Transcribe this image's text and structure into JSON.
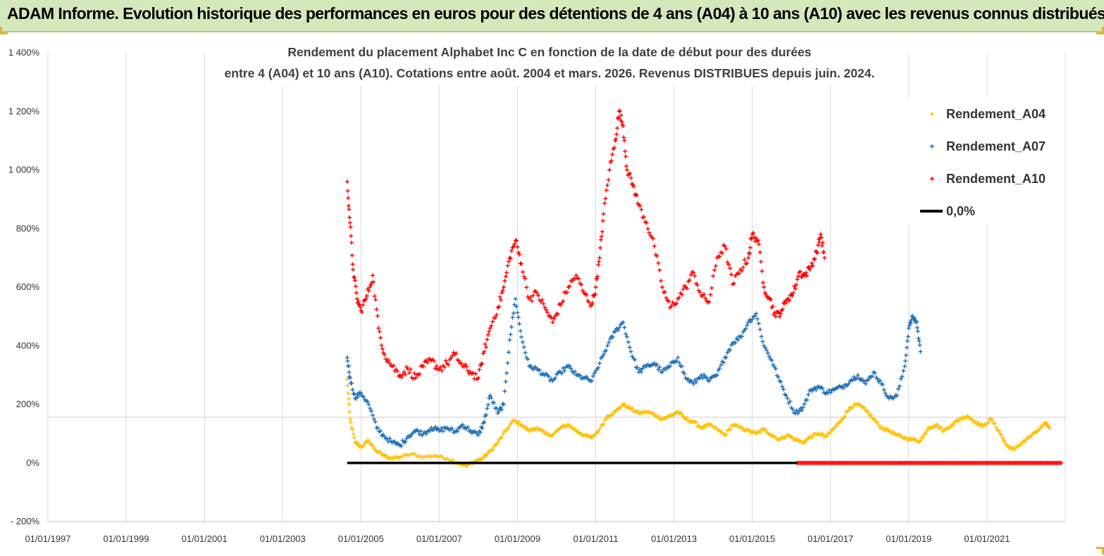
{
  "banner": {
    "title": "ADAM Informe. Evolution historique des performances en euros pour des détentions de 4 ans (A04) à 10 ans (A10) avec les revenus connus distribués"
  },
  "chart_data": {
    "type": "scatter",
    "title_lines": [
      "Rendement du placement Alphabet Inc C en fonction de la date de début pour des durées",
      "entre 4 (A04) et 10 ans (A10). Cotations entre août. 2004 et mars. 2026. Revenus DISTRIBUES depuis juin. 2024."
    ],
    "xlabel": "",
    "ylabel": "",
    "x_range": [
      1997.0,
      2023.0
    ],
    "x_ticks": [
      {
        "x": 1997,
        "label": "01/01/1997"
      },
      {
        "x": 1999,
        "label": "01/01/1999"
      },
      {
        "x": 2001,
        "label": "01/01/2001"
      },
      {
        "x": 2003,
        "label": "01/01/2003"
      },
      {
        "x": 2005,
        "label": "01/01/2005"
      },
      {
        "x": 2007,
        "label": "01/01/2007"
      },
      {
        "x": 2009,
        "label": "01/01/2009"
      },
      {
        "x": 2011,
        "label": "01/01/2011"
      },
      {
        "x": 2013,
        "label": "01/01/2013"
      },
      {
        "x": 2015,
        "label": "01/01/2015"
      },
      {
        "x": 2017,
        "label": "01/01/2017"
      },
      {
        "x": 2019,
        "label": "01/01/2019"
      },
      {
        "x": 2021,
        "label": "01/01/2021"
      }
    ],
    "ylim": [
      -200,
      1400
    ],
    "y_ticks": [
      {
        "y": -200,
        "label": "- 200%"
      },
      {
        "y": 0,
        "label": "0%"
      },
      {
        "y": 200,
        "label": "200%"
      },
      {
        "y": 400,
        "label": "400%"
      },
      {
        "y": 600,
        "label": "600%"
      },
      {
        "y": 800,
        "label": "800%"
      },
      {
        "y": 1000,
        "label": "1 000%"
      },
      {
        "y": 1200,
        "label": "1 200%"
      },
      {
        "y": 1400,
        "label": "1 400%"
      }
    ],
    "grid": "vertical",
    "legend_position": "top-right",
    "series": [
      {
        "name": "Rendement_A04",
        "color": "#ffc000",
        "marker": "+",
        "points": [
          [
            2004.65,
            285
          ],
          [
            2004.72,
            150
          ],
          [
            2004.85,
            70
          ],
          [
            2005.0,
            55
          ],
          [
            2005.2,
            75
          ],
          [
            2005.4,
            40
          ],
          [
            2005.6,
            25
          ],
          [
            2005.8,
            15
          ],
          [
            2006.0,
            20
          ],
          [
            2006.3,
            30
          ],
          [
            2006.6,
            20
          ],
          [
            2006.9,
            25
          ],
          [
            2007.2,
            15
          ],
          [
            2007.5,
            0
          ],
          [
            2007.7,
            -10
          ],
          [
            2007.9,
            5
          ],
          [
            2008.1,
            15
          ],
          [
            2008.3,
            40
          ],
          [
            2008.5,
            70
          ],
          [
            2008.7,
            110
          ],
          [
            2008.9,
            145
          ],
          [
            2009.1,
            130
          ],
          [
            2009.3,
            110
          ],
          [
            2009.5,
            120
          ],
          [
            2009.7,
            100
          ],
          [
            2009.9,
            95
          ],
          [
            2010.1,
            120
          ],
          [
            2010.3,
            130
          ],
          [
            2010.5,
            110
          ],
          [
            2010.7,
            95
          ],
          [
            2010.9,
            85
          ],
          [
            2011.1,
            115
          ],
          [
            2011.3,
            160
          ],
          [
            2011.5,
            175
          ],
          [
            2011.7,
            200
          ],
          [
            2011.9,
            185
          ],
          [
            2012.1,
            170
          ],
          [
            2012.3,
            175
          ],
          [
            2012.5,
            165
          ],
          [
            2012.7,
            150
          ],
          [
            2012.9,
            160
          ],
          [
            2013.1,
            175
          ],
          [
            2013.3,
            150
          ],
          [
            2013.5,
            140
          ],
          [
            2013.7,
            120
          ],
          [
            2013.9,
            130
          ],
          [
            2014.1,
            115
          ],
          [
            2014.3,
            95
          ],
          [
            2014.5,
            130
          ],
          [
            2014.7,
            120
          ],
          [
            2014.9,
            110
          ],
          [
            2015.1,
            100
          ],
          [
            2015.3,
            115
          ],
          [
            2015.5,
            95
          ],
          [
            2015.7,
            80
          ],
          [
            2015.9,
            95
          ],
          [
            2016.1,
            80
          ],
          [
            2016.3,
            70
          ],
          [
            2016.5,
            90
          ],
          [
            2016.7,
            100
          ],
          [
            2016.9,
            90
          ],
          [
            2017.1,
            120
          ],
          [
            2017.3,
            150
          ],
          [
            2017.5,
            190
          ],
          [
            2017.7,
            200
          ],
          [
            2017.9,
            180
          ],
          [
            2018.1,
            150
          ],
          [
            2018.3,
            120
          ],
          [
            2018.5,
            110
          ],
          [
            2018.7,
            95
          ],
          [
            2018.9,
            85
          ],
          [
            2019.1,
            80
          ],
          [
            2019.3,
            75
          ],
          [
            2019.5,
            120
          ],
          [
            2019.7,
            130
          ],
          [
            2019.9,
            110
          ],
          [
            2020.1,
            130
          ],
          [
            2020.3,
            150
          ],
          [
            2020.5,
            160
          ],
          [
            2020.7,
            140
          ],
          [
            2020.9,
            125
          ],
          [
            2021.1,
            150
          ],
          [
            2021.3,
            110
          ],
          [
            2021.5,
            60
          ],
          [
            2021.7,
            45
          ],
          [
            2021.9,
            70
          ],
          [
            2022.1,
            90
          ],
          [
            2022.3,
            110
          ],
          [
            2022.5,
            135
          ],
          [
            2022.6,
            120
          ]
        ]
      },
      {
        "name": "Rendement_A07",
        "color": "#1f6fb5",
        "marker": "+",
        "points": [
          [
            2004.65,
            360
          ],
          [
            2004.72,
            290
          ],
          [
            2004.85,
            220
          ],
          [
            2005.0,
            240
          ],
          [
            2005.2,
            200
          ],
          [
            2005.4,
            120
          ],
          [
            2005.6,
            90
          ],
          [
            2005.8,
            70
          ],
          [
            2006.0,
            60
          ],
          [
            2006.2,
            90
          ],
          [
            2006.4,
            110
          ],
          [
            2006.6,
            100
          ],
          [
            2006.8,
            120
          ],
          [
            2007.0,
            110
          ],
          [
            2007.2,
            120
          ],
          [
            2007.4,
            105
          ],
          [
            2007.6,
            130
          ],
          [
            2007.8,
            110
          ],
          [
            2008.0,
            95
          ],
          [
            2008.15,
            140
          ],
          [
            2008.3,
            230
          ],
          [
            2008.5,
            170
          ],
          [
            2008.65,
            200
          ],
          [
            2008.8,
            420
          ],
          [
            2008.95,
            560
          ],
          [
            2009.1,
            430
          ],
          [
            2009.3,
            330
          ],
          [
            2009.5,
            320
          ],
          [
            2009.7,
            300
          ],
          [
            2009.9,
            280
          ],
          [
            2010.1,
            310
          ],
          [
            2010.3,
            330
          ],
          [
            2010.5,
            300
          ],
          [
            2010.7,
            290
          ],
          [
            2010.9,
            280
          ],
          [
            2011.1,
            340
          ],
          [
            2011.3,
            400
          ],
          [
            2011.5,
            450
          ],
          [
            2011.7,
            480
          ],
          [
            2011.9,
            380
          ],
          [
            2012.1,
            310
          ],
          [
            2012.3,
            330
          ],
          [
            2012.5,
            340
          ],
          [
            2012.7,
            310
          ],
          [
            2012.9,
            330
          ],
          [
            2013.1,
            360
          ],
          [
            2013.3,
            290
          ],
          [
            2013.5,
            270
          ],
          [
            2013.7,
            300
          ],
          [
            2013.9,
            280
          ],
          [
            2014.1,
            300
          ],
          [
            2014.3,
            360
          ],
          [
            2014.5,
            410
          ],
          [
            2014.7,
            430
          ],
          [
            2014.9,
            480
          ],
          [
            2015.1,
            510
          ],
          [
            2015.3,
            400
          ],
          [
            2015.5,
            350
          ],
          [
            2015.7,
            280
          ],
          [
            2015.9,
            220
          ],
          [
            2016.1,
            170
          ],
          [
            2016.3,
            190
          ],
          [
            2016.5,
            250
          ],
          [
            2016.7,
            260
          ],
          [
            2016.9,
            240
          ],
          [
            2017.1,
            250
          ],
          [
            2017.3,
            260
          ],
          [
            2017.5,
            280
          ],
          [
            2017.7,
            300
          ],
          [
            2017.9,
            270
          ],
          [
            2018.1,
            310
          ],
          [
            2018.3,
            270
          ],
          [
            2018.5,
            220
          ],
          [
            2018.7,
            230
          ],
          [
            2018.9,
            330
          ],
          [
            2019.0,
            460
          ],
          [
            2019.1,
            500
          ],
          [
            2019.2,
            480
          ],
          [
            2019.3,
            380
          ]
        ]
      },
      {
        "name": "Rendement_A10",
        "color": "#ff0000",
        "marker": "+",
        "points": [
          [
            2004.65,
            960
          ],
          [
            2004.72,
            820
          ],
          [
            2004.8,
            660
          ],
          [
            2004.9,
            560
          ],
          [
            2005.0,
            520
          ],
          [
            2005.15,
            570
          ],
          [
            2005.3,
            640
          ],
          [
            2005.45,
            460
          ],
          [
            2005.6,
            370
          ],
          [
            2005.8,
            330
          ],
          [
            2006.0,
            300
          ],
          [
            2006.2,
            320
          ],
          [
            2006.4,
            290
          ],
          [
            2006.6,
            330
          ],
          [
            2006.8,
            350
          ],
          [
            2007.0,
            320
          ],
          [
            2007.2,
            340
          ],
          [
            2007.4,
            370
          ],
          [
            2007.6,
            330
          ],
          [
            2007.8,
            310
          ],
          [
            2008.0,
            290
          ],
          [
            2008.15,
            380
          ],
          [
            2008.3,
            460
          ],
          [
            2008.5,
            530
          ],
          [
            2008.65,
            600
          ],
          [
            2008.8,
            700
          ],
          [
            2008.95,
            760
          ],
          [
            2009.1,
            680
          ],
          [
            2009.3,
            560
          ],
          [
            2009.5,
            580
          ],
          [
            2009.7,
            530
          ],
          [
            2009.9,
            480
          ],
          [
            2010.1,
            540
          ],
          [
            2010.3,
            600
          ],
          [
            2010.5,
            640
          ],
          [
            2010.7,
            580
          ],
          [
            2010.9,
            540
          ],
          [
            2011.0,
            600
          ],
          [
            2011.1,
            700
          ],
          [
            2011.2,
            850
          ],
          [
            2011.35,
            1000
          ],
          [
            2011.5,
            1100
          ],
          [
            2011.6,
            1200
          ],
          [
            2011.7,
            1150
          ],
          [
            2011.8,
            1000
          ],
          [
            2011.95,
            950
          ],
          [
            2012.1,
            880
          ],
          [
            2012.3,
            820
          ],
          [
            2012.5,
            740
          ],
          [
            2012.7,
            600
          ],
          [
            2012.9,
            530
          ],
          [
            2013.1,
            560
          ],
          [
            2013.3,
            600
          ],
          [
            2013.5,
            650
          ],
          [
            2013.7,
            570
          ],
          [
            2013.9,
            550
          ],
          [
            2014.1,
            700
          ],
          [
            2014.3,
            740
          ],
          [
            2014.5,
            610
          ],
          [
            2014.7,
            660
          ],
          [
            2014.9,
            700
          ],
          [
            2015.0,
            780
          ],
          [
            2015.15,
            760
          ],
          [
            2015.3,
            600
          ],
          [
            2015.45,
            560
          ],
          [
            2015.6,
            500
          ],
          [
            2015.75,
            520
          ],
          [
            2015.9,
            560
          ],
          [
            2016.05,
            580
          ],
          [
            2016.2,
            650
          ],
          [
            2016.35,
            640
          ],
          [
            2016.5,
            670
          ],
          [
            2016.65,
            720
          ],
          [
            2016.75,
            780
          ],
          [
            2016.85,
            700
          ]
        ]
      },
      {
        "name": "Rendement_A10 (zero tail)",
        "color": "#ff0000",
        "marker": "+",
        "x_start": 2016.15,
        "x_end": 2022.9,
        "y": 0,
        "legend": false
      },
      {
        "name": "0,0%",
        "color": "#000000",
        "type": "line",
        "x": [
          2004.65,
          2016.15
        ],
        "y": [
          0,
          0
        ]
      }
    ],
    "legend": [
      {
        "label": "Rendement_A04",
        "color": "#ffc000",
        "symbol": "+"
      },
      {
        "label": "Rendement_A07",
        "color": "#1f6fb5",
        "symbol": "+"
      },
      {
        "label": "Rendement_A10",
        "color": "#ff0000",
        "symbol": "+"
      },
      {
        "label": "0,0%",
        "color": "#000000",
        "symbol": "line"
      }
    ]
  }
}
